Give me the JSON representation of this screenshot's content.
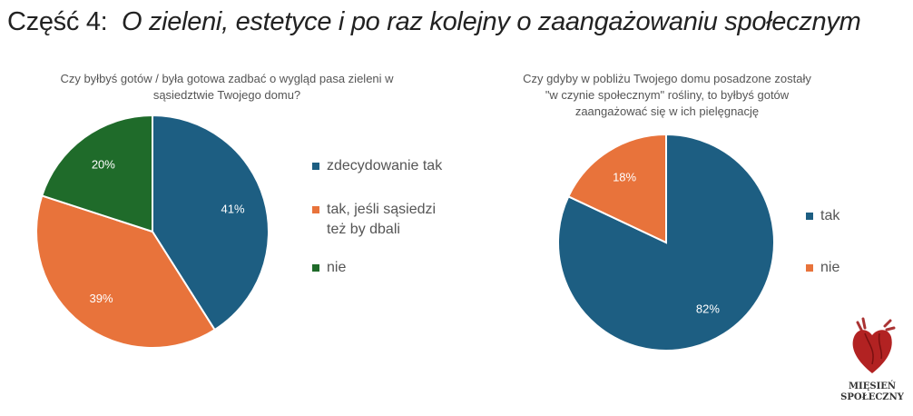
{
  "page_title": {
    "prefix": "Część 4:",
    "italic": "O zieleni, estetyce i po raz kolejny o zaangażowaniu społecznym"
  },
  "logo": {
    "line1": "MIĘSIEŃ",
    "line2": "SPOŁECZNY"
  },
  "chart_data": [
    {
      "type": "pie",
      "title": "Czy byłbyś gotów / była gotowa zadbać o wygląd pasa zieleni w sąsiedztwie Twojego domu?",
      "title_lines": [
        "Czy byłbyś gotów / była gotowa zadbać o wygląd pasa zieleni w",
        "sąsiedztwie Twojego domu?"
      ],
      "categories": [
        "zdecydowanie tak",
        "tak, jeśli sąsiedzi też by dbali",
        "nie"
      ],
      "legend_lines": [
        [
          "zdecydowanie tak"
        ],
        [
          "tak, jeśli sąsiedzi",
          "też by dbali"
        ],
        [
          "nie"
        ]
      ],
      "values": [
        41,
        39,
        20
      ],
      "labels": [
        "41%",
        "39%",
        "20%"
      ],
      "colors": [
        "#1d5e82",
        "#e8733b",
        "#1f6b2a"
      ],
      "legend": "right"
    },
    {
      "type": "pie",
      "title": "Czy gdyby w pobliżu Twojego domu posadzone zostały \"w czynie społecznym\" rośliny, to byłbyś gotów zaangażować się w ich pielęgnację",
      "title_lines": [
        "Czy gdyby w pobliżu Twojego domu posadzone zostały",
        "\"w czynie społecznym\" rośliny, to byłbyś gotów",
        "zaangażować się w ich pielęgnację"
      ],
      "categories": [
        "tak",
        "nie"
      ],
      "legend_lines": [
        [
          "tak"
        ],
        [
          "nie"
        ]
      ],
      "values": [
        82,
        18
      ],
      "labels": [
        "82%",
        "18%"
      ],
      "colors": [
        "#1d5e82",
        "#e8733b"
      ],
      "legend": "right"
    }
  ]
}
